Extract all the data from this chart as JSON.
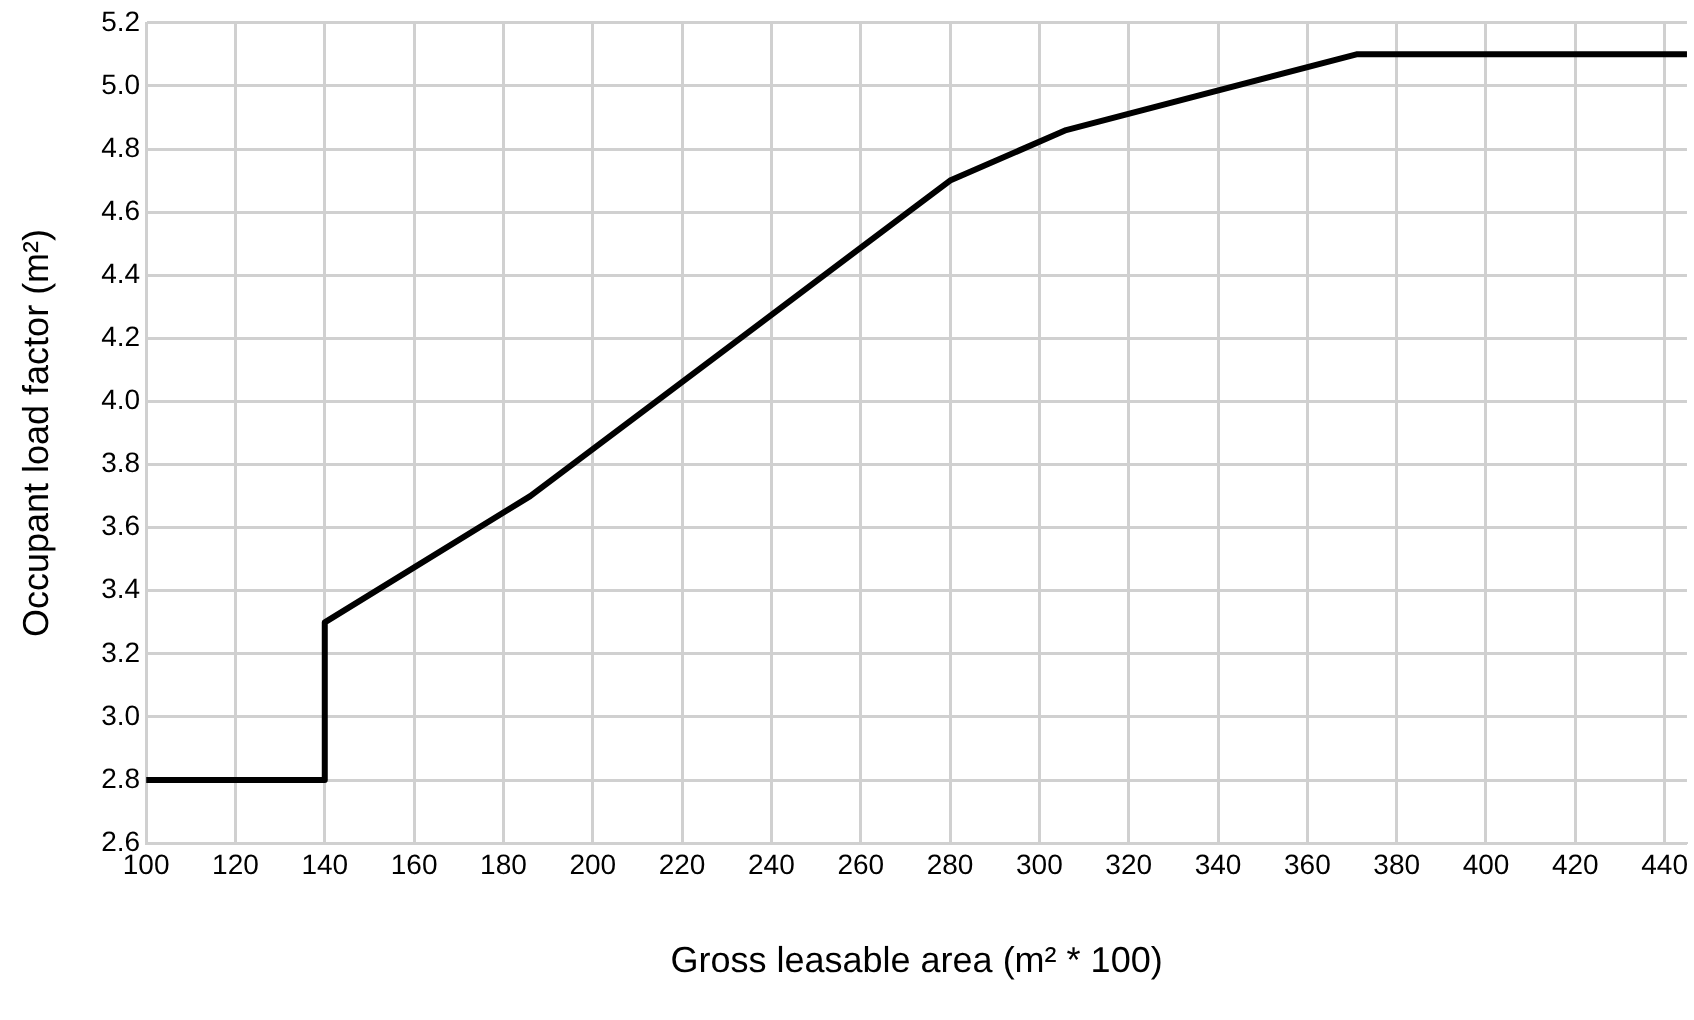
{
  "chart_data": {
    "type": "line",
    "xlabel": "Gross leasable area (m² * 100)",
    "ylabel": "Occupant load factor (m²)",
    "x": [
      100,
      140,
      140,
      186,
      280,
      306,
      371,
      445
    ],
    "values": [
      2.8,
      2.8,
      3.3,
      3.7,
      4.7,
      4.86,
      5.1,
      5.1
    ],
    "color": "#000000",
    "marker": "none",
    "line_style": "solid",
    "grid": true,
    "xlim": [
      100,
      445
    ],
    "xticks": [
      100,
      120,
      140,
      160,
      180,
      200,
      220,
      240,
      260,
      280,
      300,
      320,
      340,
      360,
      380,
      400,
      420,
      440
    ],
    "ylim": [
      2.6,
      5.2
    ],
    "yticks": [
      2.6,
      2.8,
      {
        "value": 3,
        "label": "3.0"
      },
      3.2,
      3.4,
      3.6,
      3.8,
      {
        "value": 4,
        "label": "4.0"
      },
      4.2,
      4.4,
      4.6,
      4.8,
      {
        "value": 5,
        "label": "5.0"
      },
      5.2
    ]
  }
}
